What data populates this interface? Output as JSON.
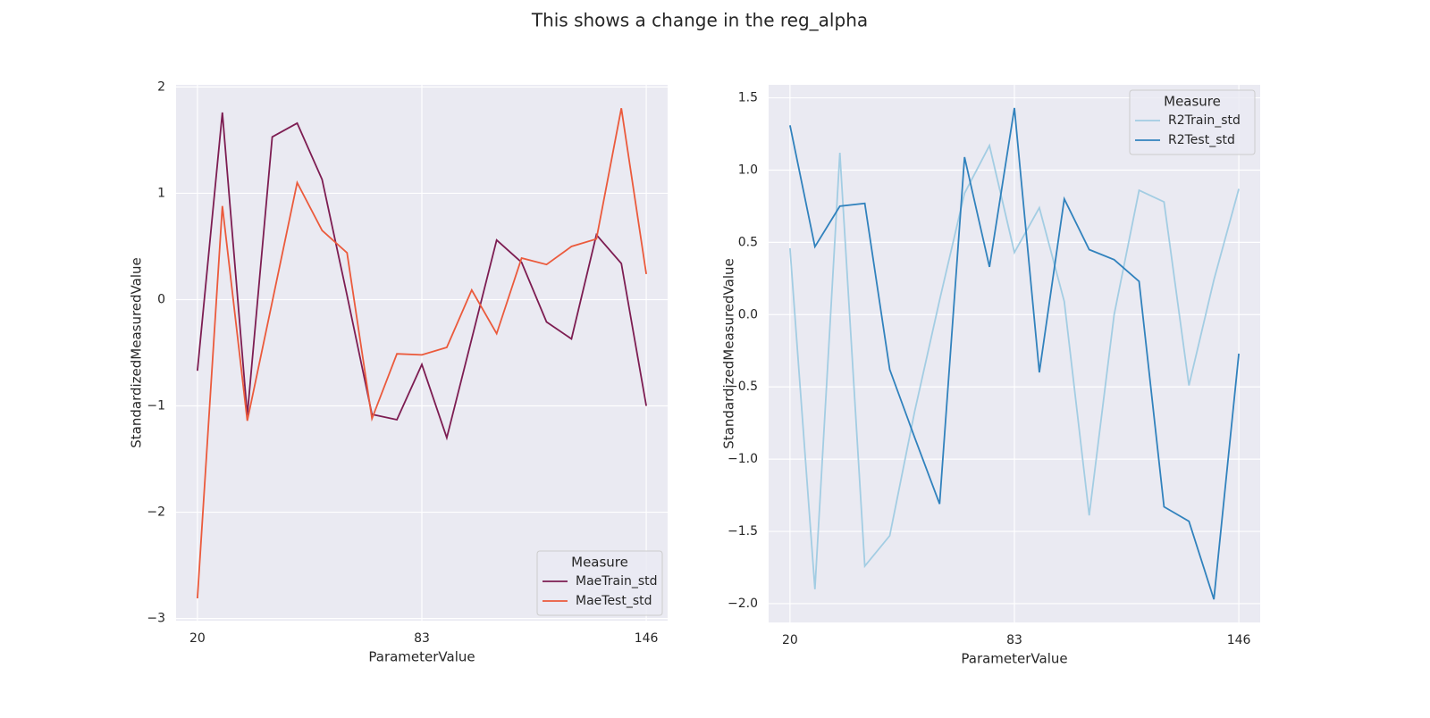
{
  "title": "This shows a change in the reg_alpha",
  "chart_data": [
    {
      "type": "line",
      "xlabel": "ParameterValue",
      "ylabel": "StandardizedMeasuredValue",
      "x": [
        20,
        27,
        34,
        41,
        48,
        55,
        62,
        69,
        76,
        83,
        90,
        97,
        104,
        111,
        118,
        125,
        132,
        139,
        146
      ],
      "series": [
        {
          "name": "MaeTrain_std",
          "color": "#7d1d52",
          "values": [
            -0.67,
            1.76,
            -1.09,
            1.53,
            1.66,
            1.13,
            0.04,
            -1.08,
            -1.13,
            -0.61,
            -1.3,
            -0.37,
            0.56,
            0.35,
            -0.21,
            -0.37,
            0.61,
            0.34,
            -1.0
          ]
        },
        {
          "name": "MaeTest_std",
          "color": "#eb5a3c",
          "values": [
            -2.81,
            0.88,
            -1.14,
            -0.02,
            1.1,
            0.65,
            0.44,
            -1.12,
            -0.51,
            -0.52,
            -0.45,
            0.09,
            -0.32,
            0.39,
            0.33,
            0.5,
            0.57,
            1.8,
            0.24
          ]
        }
      ],
      "xlim": [
        14,
        152
      ],
      "xticks": [
        20,
        83,
        146
      ],
      "ylim": [
        -3.02,
        2.02
      ],
      "yticks": [
        {
          "value": -3,
          "label": "−3"
        },
        {
          "value": -2,
          "label": "−2"
        },
        {
          "value": -1,
          "label": "−1"
        },
        0,
        1,
        2
      ],
      "grid": true,
      "legend_title": "Measure",
      "legend_position": "lower right"
    },
    {
      "type": "line",
      "xlabel": "ParameterValue",
      "ylabel": "StandardizedMeasuredValue",
      "x": [
        20,
        27,
        34,
        41,
        48,
        55,
        62,
        69,
        76,
        83,
        90,
        97,
        104,
        111,
        118,
        125,
        132,
        139,
        146
      ],
      "series": [
        {
          "name": "R2Train_std",
          "color": "#a3cde3",
          "values": [
            0.46,
            -1.9,
            1.12,
            -1.74,
            -1.53,
            -0.67,
            0.1,
            0.84,
            1.17,
            0.43,
            0.74,
            0.09,
            -1.39,
            0.0,
            0.86,
            0.78,
            -0.49,
            0.24,
            0.87
          ]
        },
        {
          "name": "R2Test_std",
          "color": "#3182bd",
          "values": [
            1.31,
            0.47,
            0.75,
            0.77,
            -0.38,
            -0.85,
            -1.31,
            1.09,
            0.33,
            1.43,
            -0.4,
            0.8,
            0.45,
            0.38,
            0.23,
            -1.33,
            -1.43,
            -1.97,
            -0.27
          ]
        }
      ],
      "xlim": [
        14,
        152
      ],
      "xticks": [
        20,
        83,
        146
      ],
      "ylim": [
        -2.13,
        1.59
      ],
      "yticks": [
        {
          "value": -2,
          "label": "−2.0"
        },
        {
          "value": -1.5,
          "label": "−1.5"
        },
        {
          "value": -1,
          "label": "−1.0"
        },
        {
          "value": -0.5,
          "label": "−0.5"
        },
        {
          "value": 0,
          "label": "0.0"
        },
        0.5,
        {
          "value": 1,
          "label": "1.0"
        },
        1.5
      ],
      "grid": true,
      "legend_title": "Measure",
      "legend_position": "upper right"
    }
  ]
}
